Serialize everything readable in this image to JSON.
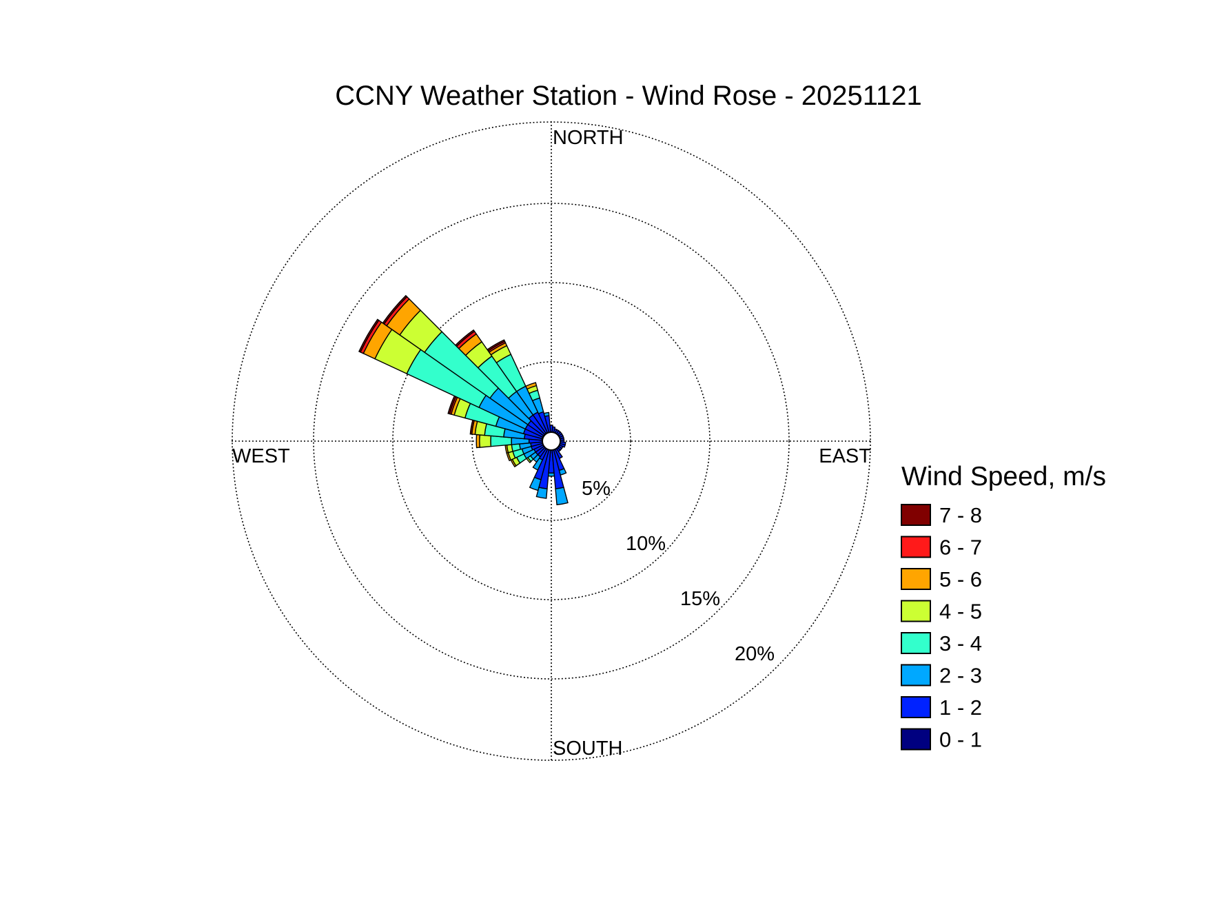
{
  "chart_data": {
    "type": "windrose",
    "title": "CCNY Weather Station - Wind Rose - 20251121",
    "directions": {
      "north": "NORTH",
      "east": "EAST",
      "south": "SOUTH",
      "west": "WEST"
    },
    "radial_ticks": [
      "5%",
      "10%",
      "15%",
      "20%"
    ],
    "radial_values": [
      5,
      10,
      15,
      20
    ],
    "radial_max": 20,
    "grid": true,
    "legend": {
      "title": "Wind Speed, m/s",
      "placement": "right",
      "bins": [
        {
          "label": "7 - 8",
          "color": "#800000"
        },
        {
          "label": "6 - 7",
          "color": "#ff1a1a"
        },
        {
          "label": "5 - 6",
          "color": "#ffa500"
        },
        {
          "label": "4 - 5",
          "color": "#ccff33"
        },
        {
          "label": "3 - 4",
          "color": "#33ffcc"
        },
        {
          "label": "2 - 3",
          "color": "#00a8ff"
        },
        {
          "label": "1 - 2",
          "color": "#0022ff"
        },
        {
          "label": "0 - 1",
          "color": "#000080"
        }
      ]
    },
    "speed_bins": [
      "0 - 1",
      "1 - 2",
      "2 - 3",
      "3 - 4",
      "4 - 5",
      "5 - 6",
      "6 - 7",
      "7 - 8"
    ],
    "bin_colors": [
      "#000080",
      "#0022ff",
      "#00a8ff",
      "#33ffcc",
      "#ccff33",
      "#ffa500",
      "#ff1a1a",
      "#800000"
    ],
    "sector_width_deg": 10,
    "sectors": [
      {
        "dir": 300,
        "cum": [
          0.6,
          1.8,
          5.0,
          10.0,
          12.2,
          13.0,
          13.2,
          13.3
        ]
      },
      {
        "dir": 310,
        "cum": [
          0.6,
          1.8,
          4.7,
          9.7,
          11.6,
          12.6,
          12.8,
          12.9
        ]
      },
      {
        "dir": 320,
        "cum": [
          0.6,
          2.0,
          3.8,
          6.5,
          7.6,
          8.2,
          8.4,
          8.5
        ]
      },
      {
        "dir": 330,
        "cum": [
          0.6,
          2.0,
          3.8,
          6.0,
          6.6,
          6.8,
          6.9,
          7.0
        ]
      },
      {
        "dir": 290,
        "cum": [
          0.6,
          1.8,
          3.6,
          5.6,
          6.3,
          6.5,
          6.6,
          6.7
        ]
      },
      {
        "dir": 340,
        "cum": [
          0.5,
          1.9,
          2.8,
          3.3,
          3.6,
          3.8,
          3.8,
          3.8
        ]
      },
      {
        "dir": 350,
        "cum": [
          0.5,
          1.6,
          1.8,
          1.8,
          1.8,
          1.8,
          1.8,
          1.8
        ]
      },
      {
        "dir": 0,
        "cum": [
          0.5,
          1.0,
          1.0,
          1.0,
          1.0,
          1.0,
          1.0,
          1.0
        ]
      },
      {
        "dir": 270,
        "cum": [
          0.5,
          1.4,
          2.5,
          3.8,
          4.5,
          4.7,
          4.7,
          4.7
        ]
      },
      {
        "dir": 260,
        "cum": [
          0.5,
          1.3,
          2.0,
          2.5,
          2.8,
          2.9,
          2.9,
          2.9
        ]
      },
      {
        "dir": 250,
        "cum": [
          0.5,
          1.3,
          1.9,
          2.5,
          2.8,
          2.9,
          2.9,
          2.9
        ]
      },
      {
        "dir": 240,
        "cum": [
          0.5,
          1.2,
          1.9,
          2.4,
          2.7,
          2.8,
          2.8,
          2.8
        ]
      },
      {
        "dir": 230,
        "cum": [
          0.5,
          1.2,
          1.6,
          1.8,
          1.9,
          1.9,
          1.9,
          1.9
        ]
      },
      {
        "dir": 220,
        "cum": [
          0.5,
          1.2,
          1.6,
          1.6,
          1.6,
          1.6,
          1.6,
          1.6
        ]
      },
      {
        "dir": 210,
        "cum": [
          0.5,
          1.3,
          2.0,
          2.0,
          2.0,
          2.0,
          2.0,
          2.0
        ]
      },
      {
        "dir": 200,
        "cum": [
          0.5,
          2.5,
          3.2,
          3.2,
          3.2,
          3.2,
          3.2,
          3.2
        ]
      },
      {
        "dir": 190,
        "cum": [
          0.5,
          3.0,
          3.6,
          3.6,
          3.6,
          3.6,
          3.6,
          3.6
        ]
      },
      {
        "dir": 180,
        "cum": [
          0.5,
          2.0,
          2.2,
          2.2,
          2.2,
          2.2,
          2.2,
          2.2
        ]
      },
      {
        "dir": 170,
        "cum": [
          0.5,
          3.0,
          4.0,
          4.0,
          4.0,
          4.0,
          4.0,
          4.0
        ]
      },
      {
        "dir": 160,
        "cum": [
          0.5,
          1.9,
          2.2,
          2.2,
          2.2,
          2.2,
          2.2,
          2.2
        ]
      },
      {
        "dir": 150,
        "cum": [
          0.5,
          1.2,
          1.2,
          1.2,
          1.2,
          1.2,
          1.2,
          1.2
        ]
      },
      {
        "dir": 140,
        "cum": [
          0.5,
          0.8,
          0.8,
          0.8,
          0.8,
          0.8,
          0.8,
          0.8
        ]
      },
      {
        "dir": 130,
        "cum": [
          0.5,
          0.8,
          0.8,
          0.8,
          0.8,
          0.8,
          0.8,
          0.8
        ]
      },
      {
        "dir": 120,
        "cum": [
          0.5,
          0.8,
          0.8,
          0.8,
          0.8,
          0.8,
          0.8,
          0.8
        ]
      },
      {
        "dir": 110,
        "cum": [
          0.5,
          0.9,
          0.9,
          0.9,
          0.9,
          0.9,
          0.9,
          0.9
        ]
      },
      {
        "dir": 100,
        "cum": [
          0.5,
          0.9,
          0.9,
          0.9,
          0.9,
          0.9,
          0.9,
          0.9
        ]
      },
      {
        "dir": 90,
        "cum": [
          0.5,
          0.8,
          0.8,
          0.8,
          0.8,
          0.8,
          0.8,
          0.8
        ]
      },
      {
        "dir": 80,
        "cum": [
          0.5,
          0.8,
          0.8,
          0.8,
          0.8,
          0.8,
          0.8,
          0.8
        ]
      },
      {
        "dir": 70,
        "cum": [
          0.5,
          0.8,
          0.8,
          0.8,
          0.8,
          0.8,
          0.8,
          0.8
        ]
      },
      {
        "dir": 60,
        "cum": [
          0.5,
          0.8,
          0.8,
          0.8,
          0.8,
          0.8,
          0.8,
          0.8
        ]
      },
      {
        "dir": 50,
        "cum": [
          0.5,
          0.8,
          0.8,
          0.8,
          0.8,
          0.8,
          0.8,
          0.8
        ]
      },
      {
        "dir": 40,
        "cum": [
          0.5,
          0.8,
          0.8,
          0.8,
          0.8,
          0.8,
          0.8,
          0.8
        ]
      },
      {
        "dir": 30,
        "cum": [
          0.5,
          0.8,
          0.8,
          0.8,
          0.8,
          0.8,
          0.8,
          0.8
        ]
      },
      {
        "dir": 20,
        "cum": [
          0.5,
          0.8,
          0.8,
          0.8,
          0.8,
          0.8,
          0.8,
          0.8
        ]
      },
      {
        "dir": 10,
        "cum": [
          0.5,
          0.9,
          0.9,
          0.9,
          0.9,
          0.9,
          0.9,
          0.9
        ]
      },
      {
        "dir": 280,
        "cum": [
          0.6,
          1.7,
          3.0,
          4.2,
          4.8,
          5.0,
          5.0,
          5.1
        ]
      }
    ]
  }
}
